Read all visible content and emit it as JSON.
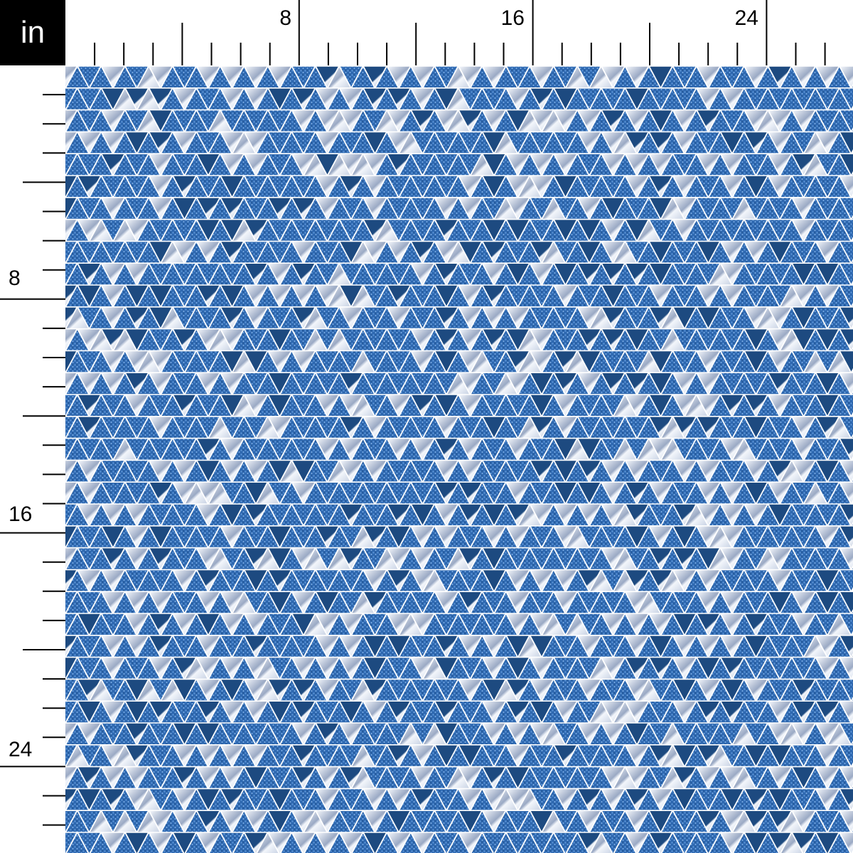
{
  "unit": "in",
  "ruler": {
    "top_labels": [
      "8",
      "16",
      "24"
    ],
    "left_labels": [
      "8",
      "16",
      "24"
    ]
  },
  "fabric": {
    "pattern": "triangles",
    "colors": {
      "glitter_blue": "#2e68b0",
      "glitter_light": "#5a93d6",
      "navy": "#1d4a80",
      "white": "#f3f6fb",
      "marble_gray": "#9aa9c4"
    }
  }
}
